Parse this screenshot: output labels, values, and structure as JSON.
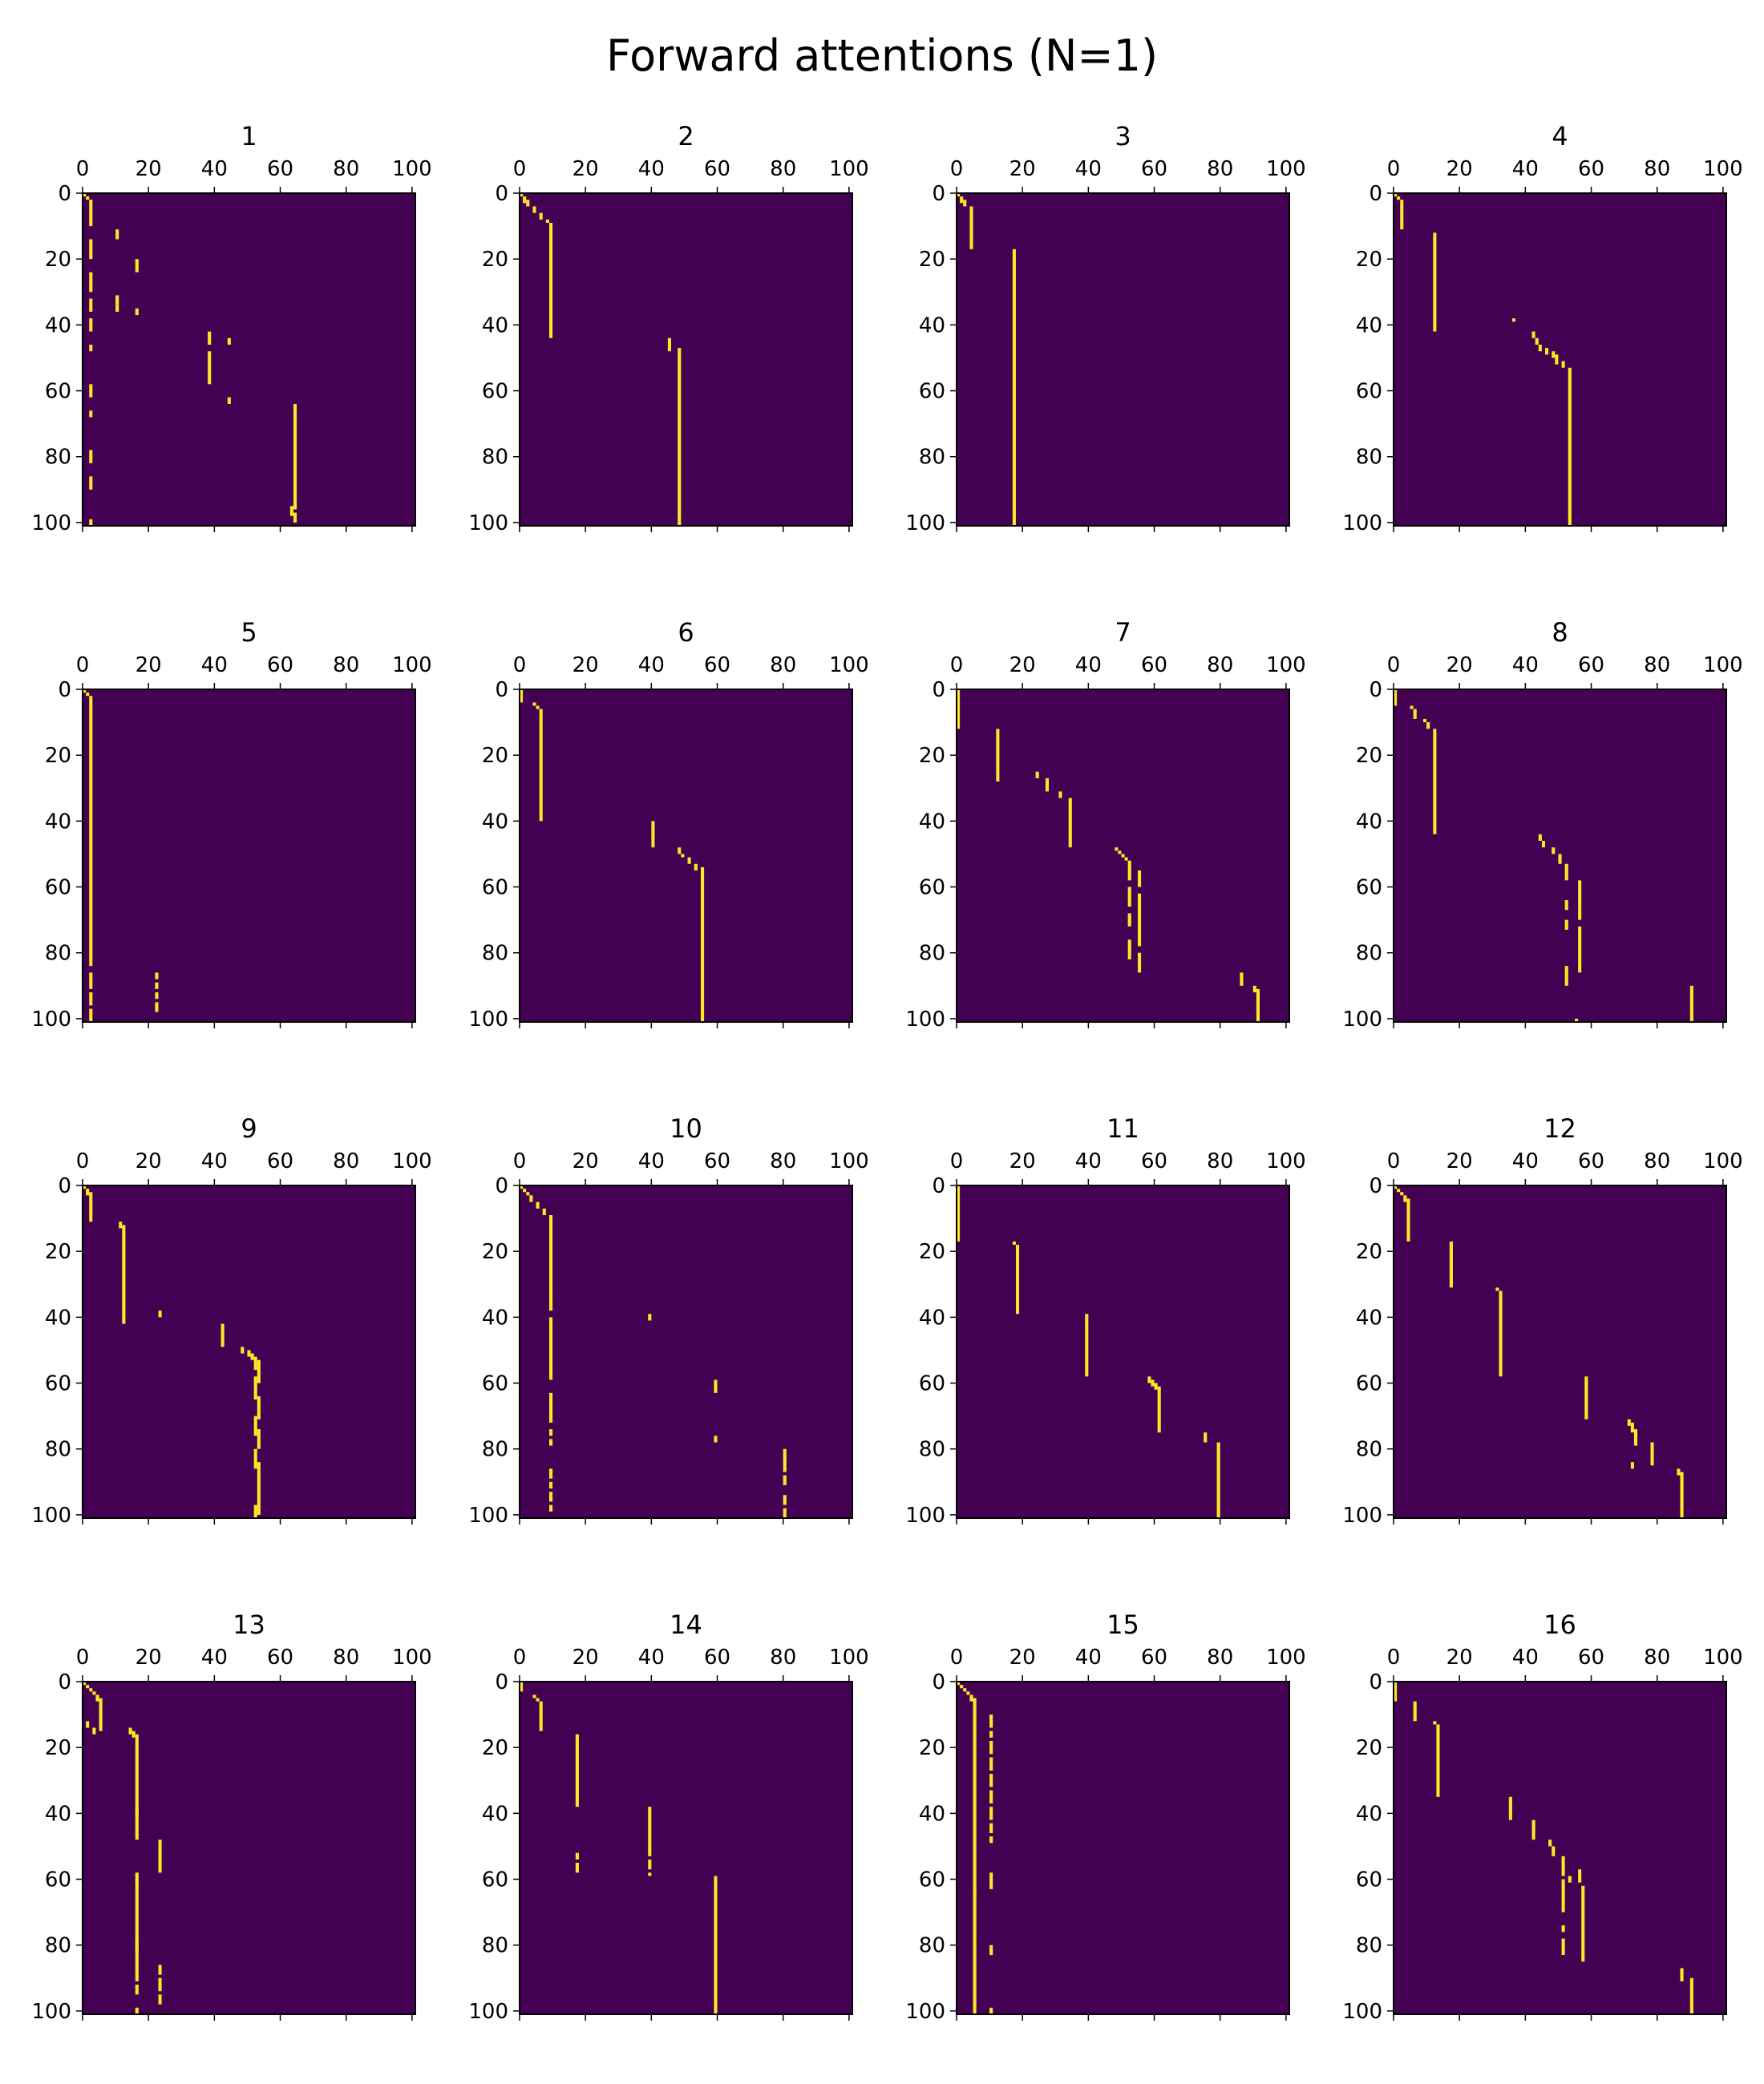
{
  "title": "Forward attentions (N=1)",
  "colors": {
    "background": "#440154",
    "highlight": "#fde725",
    "axis": "#000000"
  },
  "chart_data": {
    "type": "heatmap",
    "grid": "4x4",
    "axes": {
      "x_ticks": [
        "0",
        "20",
        "40",
        "60",
        "80",
        "100"
      ],
      "y_ticks": [
        "0",
        "20",
        "40",
        "60",
        "80",
        "100"
      ],
      "x_tick_values": [
        0,
        20,
        40,
        60,
        80,
        100
      ],
      "y_tick_values": [
        0,
        20,
        40,
        60,
        80,
        100
      ],
      "xlim": [
        0,
        101
      ],
      "ylim": [
        0,
        101
      ],
      "x_axis_position": "top"
    },
    "panels": [
      {
        "title": "1",
        "segments": [
          [
            0,
            0,
            1
          ],
          [
            1,
            1,
            2
          ],
          [
            2,
            2,
            10
          ],
          [
            2,
            14,
            20
          ],
          [
            10,
            11,
            14
          ],
          [
            16,
            20,
            24
          ],
          [
            2,
            24,
            30
          ],
          [
            10,
            31,
            34
          ],
          [
            2,
            32,
            36
          ],
          [
            10,
            34,
            36
          ],
          [
            16,
            35,
            37
          ],
          [
            2,
            38,
            42
          ],
          [
            2,
            46,
            48
          ],
          [
            38,
            42,
            46
          ],
          [
            38,
            48,
            58
          ],
          [
            44,
            44,
            46
          ],
          [
            44,
            62,
            64
          ],
          [
            2,
            58,
            62
          ],
          [
            2,
            66,
            68
          ],
          [
            64,
            64,
            96
          ],
          [
            2,
            78,
            82
          ],
          [
            2,
            86,
            90
          ],
          [
            63,
            95,
            98
          ],
          [
            64,
            97,
            100
          ],
          [
            2,
            99,
            101
          ]
        ]
      },
      {
        "title": "2",
        "segments": [
          [
            0,
            0,
            1
          ],
          [
            1,
            1,
            3
          ],
          [
            2,
            2,
            4
          ],
          [
            4,
            4,
            6
          ],
          [
            6,
            6,
            8
          ],
          [
            8,
            8,
            9
          ],
          [
            9,
            9,
            44
          ],
          [
            45,
            44,
            48
          ],
          [
            48,
            47,
            101
          ]
        ]
      },
      {
        "title": "3",
        "segments": [
          [
            0,
            0,
            1
          ],
          [
            1,
            1,
            3
          ],
          [
            2,
            2,
            4
          ],
          [
            4,
            4,
            17
          ],
          [
            17,
            17,
            101
          ]
        ]
      },
      {
        "title": "4",
        "segments": [
          [
            0,
            0,
            1
          ],
          [
            1,
            1,
            2
          ],
          [
            2,
            2,
            11
          ],
          [
            12,
            12,
            42
          ],
          [
            36,
            38,
            39
          ],
          [
            42,
            42,
            44
          ],
          [
            43,
            44,
            46
          ],
          [
            44,
            46,
            48
          ],
          [
            46,
            47,
            49
          ],
          [
            48,
            48,
            50
          ],
          [
            49,
            49,
            52
          ],
          [
            51,
            51,
            53
          ],
          [
            53,
            53,
            101
          ]
        ]
      },
      {
        "title": "5",
        "segments": [
          [
            0,
            0,
            1
          ],
          [
            1,
            1,
            2
          ],
          [
            2,
            2,
            84
          ],
          [
            2,
            86,
            91
          ],
          [
            2,
            92,
            96
          ],
          [
            2,
            97,
            101
          ],
          [
            22,
            86,
            88
          ],
          [
            22,
            89,
            91
          ],
          [
            22,
            92,
            94
          ],
          [
            22,
            95,
            98
          ]
        ]
      },
      {
        "title": "6",
        "segments": [
          [
            0,
            0,
            4
          ],
          [
            4,
            4,
            5
          ],
          [
            5,
            5,
            6
          ],
          [
            6,
            6,
            40
          ],
          [
            40,
            40,
            48
          ],
          [
            48,
            48,
            50
          ],
          [
            49,
            50,
            51
          ],
          [
            51,
            51,
            53
          ],
          [
            53,
            53,
            55
          ],
          [
            55,
            54,
            101
          ]
        ]
      },
      {
        "title": "7",
        "segments": [
          [
            0,
            0,
            12
          ],
          [
            12,
            12,
            26
          ],
          [
            12,
            26,
            28
          ],
          [
            24,
            25,
            27
          ],
          [
            27,
            27,
            31
          ],
          [
            31,
            31,
            33
          ],
          [
            34,
            33,
            48
          ],
          [
            48,
            48,
            49
          ],
          [
            49,
            49,
            50
          ],
          [
            50,
            50,
            51
          ],
          [
            51,
            51,
            52
          ],
          [
            52,
            52,
            58
          ],
          [
            55,
            55,
            60
          ],
          [
            52,
            60,
            66
          ],
          [
            55,
            62,
            70
          ],
          [
            52,
            68,
            72
          ],
          [
            55,
            70,
            78
          ],
          [
            52,
            76,
            82
          ],
          [
            55,
            80,
            86
          ],
          [
            86,
            86,
            90
          ],
          [
            90,
            90,
            92
          ],
          [
            91,
            91,
            101
          ]
        ]
      },
      {
        "title": "8",
        "segments": [
          [
            0,
            0,
            5
          ],
          [
            5,
            5,
            6
          ],
          [
            6,
            6,
            9
          ],
          [
            9,
            9,
            10
          ],
          [
            10,
            10,
            12
          ],
          [
            12,
            12,
            44
          ],
          [
            44,
            44,
            46
          ],
          [
            45,
            46,
            48
          ],
          [
            48,
            48,
            50
          ],
          [
            50,
            50,
            53
          ],
          [
            52,
            53,
            58
          ],
          [
            56,
            58,
            66
          ],
          [
            52,
            64,
            67
          ],
          [
            56,
            66,
            70
          ],
          [
            52,
            70,
            73
          ],
          [
            56,
            72,
            86
          ],
          [
            52,
            84,
            86
          ],
          [
            52,
            86,
            90
          ],
          [
            55,
            100,
            101
          ],
          [
            90,
            90,
            101
          ]
        ]
      },
      {
        "title": "9",
        "segments": [
          [
            0,
            0,
            1
          ],
          [
            1,
            1,
            3
          ],
          [
            2,
            2,
            11
          ],
          [
            11,
            11,
            13
          ],
          [
            12,
            12,
            42
          ],
          [
            23,
            38,
            40
          ],
          [
            42,
            42,
            49
          ],
          [
            48,
            49,
            51
          ],
          [
            50,
            50,
            52
          ],
          [
            51,
            51,
            53
          ],
          [
            52,
            52,
            56
          ],
          [
            53,
            53,
            60
          ],
          [
            52,
            58,
            65
          ],
          [
            53,
            64,
            71
          ],
          [
            52,
            70,
            76
          ],
          [
            53,
            74,
            80
          ],
          [
            52,
            80,
            86
          ],
          [
            53,
            84,
            100
          ],
          [
            52,
            97,
            101
          ]
        ]
      },
      {
        "title": "10",
        "segments": [
          [
            0,
            0,
            1
          ],
          [
            1,
            1,
            2
          ],
          [
            2,
            2,
            3
          ],
          [
            3,
            3,
            5
          ],
          [
            5,
            5,
            7
          ],
          [
            7,
            7,
            9
          ],
          [
            9,
            9,
            38
          ],
          [
            9,
            40,
            59
          ],
          [
            9,
            63,
            72
          ],
          [
            9,
            74,
            76
          ],
          [
            9,
            77,
            79
          ],
          [
            39,
            39,
            41
          ],
          [
            59,
            59,
            63
          ],
          [
            59,
            76,
            78
          ],
          [
            80,
            80,
            87
          ],
          [
            80,
            88,
            91
          ],
          [
            80,
            94,
            97
          ],
          [
            80,
            98,
            101
          ],
          [
            9,
            86,
            89
          ],
          [
            9,
            90,
            92
          ],
          [
            9,
            93,
            96
          ],
          [
            9,
            97,
            99
          ]
        ]
      },
      {
        "title": "11",
        "segments": [
          [
            0,
            0,
            17
          ],
          [
            17,
            17,
            18
          ],
          [
            18,
            18,
            39
          ],
          [
            39,
            39,
            58
          ],
          [
            58,
            58,
            60
          ],
          [
            59,
            59,
            61
          ],
          [
            60,
            60,
            62
          ],
          [
            61,
            61,
            75
          ],
          [
            75,
            75,
            78
          ],
          [
            79,
            78,
            101
          ]
        ]
      },
      {
        "title": "12",
        "segments": [
          [
            0,
            0,
            1
          ],
          [
            1,
            1,
            2
          ],
          [
            2,
            2,
            3
          ],
          [
            3,
            3,
            5
          ],
          [
            4,
            4,
            17
          ],
          [
            17,
            17,
            31
          ],
          [
            31,
            31,
            32
          ],
          [
            32,
            32,
            58
          ],
          [
            58,
            58,
            71
          ],
          [
            71,
            71,
            73
          ],
          [
            72,
            72,
            75
          ],
          [
            73,
            74,
            79
          ],
          [
            72,
            84,
            86
          ],
          [
            78,
            78,
            85
          ],
          [
            86,
            86,
            88
          ],
          [
            87,
            87,
            101
          ]
        ]
      },
      {
        "title": "13",
        "segments": [
          [
            0,
            0,
            1
          ],
          [
            1,
            1,
            2
          ],
          [
            2,
            2,
            3
          ],
          [
            3,
            3,
            4
          ],
          [
            4,
            4,
            6
          ],
          [
            5,
            5,
            15
          ],
          [
            1,
            12,
            14
          ],
          [
            3,
            14,
            16
          ],
          [
            14,
            14,
            16
          ],
          [
            15,
            15,
            17
          ],
          [
            16,
            16,
            48
          ],
          [
            16,
            38,
            41
          ],
          [
            23,
            48,
            58
          ],
          [
            16,
            58,
            61
          ],
          [
            16,
            60,
            91
          ],
          [
            16,
            78,
            82
          ],
          [
            23,
            86,
            89
          ],
          [
            23,
            90,
            94
          ],
          [
            23,
            95,
            98
          ],
          [
            16,
            92,
            95
          ],
          [
            16,
            99,
            101
          ]
        ]
      },
      {
        "title": "14",
        "segments": [
          [
            0,
            0,
            3
          ],
          [
            4,
            4,
            5
          ],
          [
            5,
            5,
            6
          ],
          [
            6,
            6,
            15
          ],
          [
            17,
            16,
            17
          ],
          [
            17,
            17,
            38
          ],
          [
            17,
            52,
            54
          ],
          [
            17,
            55,
            58
          ],
          [
            39,
            38,
            53
          ],
          [
            39,
            54,
            57
          ],
          [
            39,
            58,
            59
          ],
          [
            59,
            59,
            101
          ]
        ]
      },
      {
        "title": "15",
        "segments": [
          [
            0,
            0,
            1
          ],
          [
            1,
            1,
            2
          ],
          [
            2,
            2,
            3
          ],
          [
            3,
            3,
            4
          ],
          [
            4,
            4,
            6
          ],
          [
            5,
            5,
            101
          ],
          [
            10,
            10,
            14
          ],
          [
            10,
            15,
            17
          ],
          [
            10,
            18,
            22
          ],
          [
            10,
            23,
            27
          ],
          [
            10,
            28,
            32
          ],
          [
            10,
            33,
            37
          ],
          [
            10,
            38,
            42
          ],
          [
            10,
            43,
            46
          ],
          [
            10,
            47,
            49
          ],
          [
            10,
            58,
            63
          ],
          [
            10,
            80,
            83
          ],
          [
            10,
            99,
            101
          ],
          [
            5,
            63,
            66
          ]
        ]
      },
      {
        "title": "16",
        "segments": [
          [
            0,
            0,
            6
          ],
          [
            6,
            6,
            12
          ],
          [
            12,
            12,
            13
          ],
          [
            13,
            13,
            35
          ],
          [
            35,
            35,
            42
          ],
          [
            42,
            42,
            48
          ],
          [
            47,
            48,
            50
          ],
          [
            48,
            50,
            53
          ],
          [
            51,
            53,
            59
          ],
          [
            53,
            59,
            61
          ],
          [
            56,
            57,
            61
          ],
          [
            51,
            60,
            70
          ],
          [
            57,
            62,
            85
          ],
          [
            51,
            74,
            76
          ],
          [
            51,
            78,
            83
          ],
          [
            87,
            87,
            91
          ],
          [
            90,
            90,
            101
          ]
        ]
      }
    ]
  }
}
